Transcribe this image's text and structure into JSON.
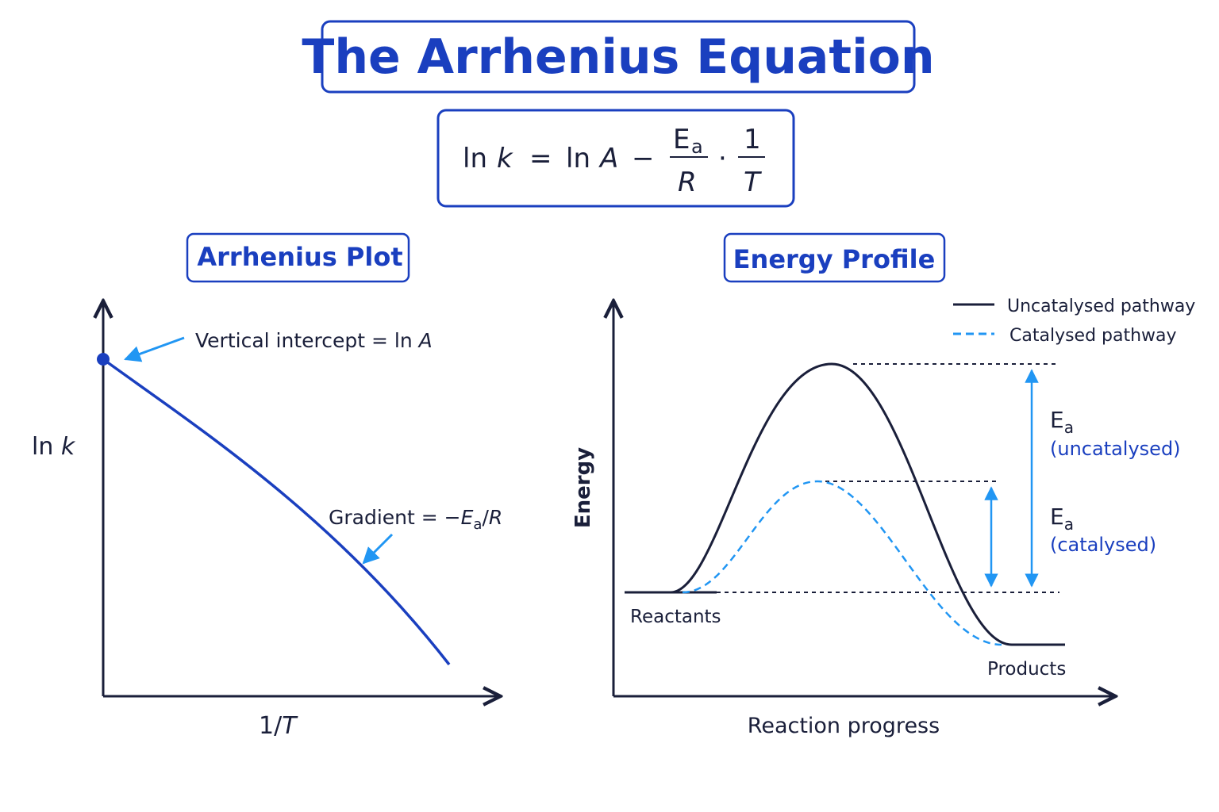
{
  "header": {
    "title": "The Arrhenius Equation"
  },
  "equation": {
    "lhs_fn": "ln",
    "lhs_var": "k",
    "equals": "=",
    "rhs_fn": "ln",
    "rhs_var": "A",
    "minus": "−",
    "frac1_num": "E",
    "frac1_num_sub": "a",
    "frac1_den": "R",
    "dot": "·",
    "frac2_num": "1",
    "frac2_den": "T"
  },
  "arrhenius_plot": {
    "title": "Arrhenius Plot",
    "y_label_fn": "ln",
    "y_label_var": "k",
    "x_label_num": "1/",
    "x_label_var": "T",
    "intercept_note": {
      "text": "Vertical intercept = ln ",
      "var": "A"
    },
    "gradient_note": {
      "text": "Gradient = −",
      "var": "E",
      "sub": "a",
      "rest": "/",
      "den": "R"
    }
  },
  "energy_profile": {
    "title": "Energy Profile",
    "y_label": "Energy",
    "x_label": "Reaction progress",
    "legend": [
      "Uncatalysed pathway",
      "Catalysed pathway"
    ],
    "reactants": "Reactants",
    "products": "Products",
    "ea_uncatalysed": {
      "symbol": "E",
      "sub": "a",
      "note": "(uncatalysed)"
    },
    "ea_catalysed": {
      "symbol": "E",
      "sub": "a",
      "note": "(catalysed)"
    }
  }
}
